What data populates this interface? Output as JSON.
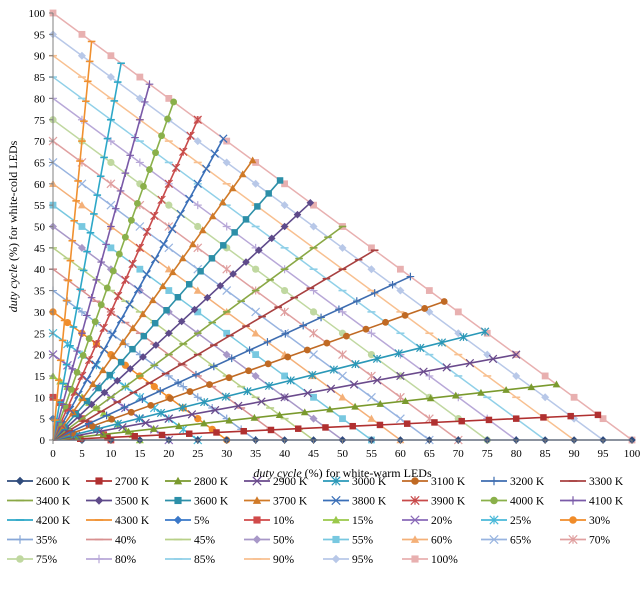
{
  "chart_data": {
    "type": "line",
    "title": "",
    "xlabel_italic": "duty cycle",
    "xlabel_rest": " (%) for white-warm LEDs",
    "ylabel_italic": "duty cycle",
    "ylabel_rest": " (%) for white-cold  LEDs",
    "xlim": [
      0,
      100
    ],
    "ylim": [
      0,
      100
    ],
    "xticks": [
      0,
      5,
      10,
      15,
      20,
      25,
      30,
      35,
      40,
      45,
      50,
      55,
      60,
      65,
      70,
      75,
      80,
      85,
      90,
      95,
      100
    ],
    "yticks": [
      0,
      5,
      10,
      15,
      20,
      25,
      30,
      35,
      40,
      45,
      50,
      55,
      60,
      65,
      70,
      75,
      80,
      85,
      90,
      95,
      100
    ],
    "grid": false,
    "legend_position": "bottom",
    "note": "CCT series are rays from origin: y = ratio * x, clipped to x + y <= 100. Duty series are lines x + y = total.",
    "cct_series": [
      {
        "name": "2600 K",
        "ratio": 0.0,
        "color": "#2F4B7C",
        "marker": "diamond"
      },
      {
        "name": "2700 K",
        "ratio": 0.0625,
        "color": "#B03030",
        "marker": "square"
      },
      {
        "name": "2800 K",
        "ratio": 0.15,
        "color": "#7A9A2E",
        "marker": "triangle"
      },
      {
        "name": "2900 K",
        "ratio": 0.25,
        "color": "#6A4A8C",
        "marker": "x"
      },
      {
        "name": "3000 K",
        "ratio": 0.34,
        "color": "#2A98B8",
        "marker": "star"
      },
      {
        "name": "3100 K",
        "ratio": 0.48,
        "color": "#C06A24",
        "marker": "circle"
      },
      {
        "name": "3200 K",
        "ratio": 0.62,
        "color": "#3E6DB0",
        "marker": "plus"
      },
      {
        "name": "3300 K",
        "ratio": 0.8,
        "color": "#A84040",
        "marker": "dash"
      },
      {
        "name": "3400 K",
        "ratio": 1.0,
        "color": "#8AA845",
        "marker": "dash"
      },
      {
        "name": "3500 K",
        "ratio": 1.25,
        "color": "#5E4A8A",
        "marker": "diamond"
      },
      {
        "name": "3600 K",
        "ratio": 1.55,
        "color": "#2C8FA8",
        "marker": "square"
      },
      {
        "name": "3700 K",
        "ratio": 1.9,
        "color": "#D07A28",
        "marker": "triangle"
      },
      {
        "name": "3800 K",
        "ratio": 2.4,
        "color": "#3A6FB8",
        "marker": "x"
      },
      {
        "name": "3900 K",
        "ratio": 3.0,
        "color": "#C84A4A",
        "marker": "star"
      },
      {
        "name": "4000 K",
        "ratio": 3.8,
        "color": "#8AB04A",
        "marker": "circle"
      },
      {
        "name": "4100 K",
        "ratio": 5.0,
        "color": "#7A5AA8",
        "marker": "plus"
      },
      {
        "name": "4200 K",
        "ratio": 7.5,
        "color": "#2EA8C8",
        "marker": "dash"
      },
      {
        "name": "4300 K",
        "ratio": 14.0,
        "color": "#F09030",
        "marker": "dash"
      }
    ],
    "duty_series": [
      {
        "name": "5%",
        "total": 5,
        "color": "#3A78C8",
        "marker": "diamond"
      },
      {
        "name": "10%",
        "total": 10,
        "color": "#D04A4A",
        "marker": "square"
      },
      {
        "name": "15%",
        "total": 15,
        "color": "#9AC84A",
        "marker": "triangle"
      },
      {
        "name": "20%",
        "total": 20,
        "color": "#8A6AB8",
        "marker": "x"
      },
      {
        "name": "25%",
        "total": 25,
        "color": "#48B8D8",
        "marker": "star"
      },
      {
        "name": "30%",
        "total": 30,
        "color": "#F08C2A",
        "marker": "circle"
      },
      {
        "name": "35%",
        "total": 35,
        "color": "#88A8D8",
        "marker": "plus"
      },
      {
        "name": "40%",
        "total": 40,
        "color": "#D89090",
        "marker": "dash"
      },
      {
        "name": "45%",
        "total": 45,
        "color": "#B8D088",
        "marker": "dash"
      },
      {
        "name": "50%",
        "total": 50,
        "color": "#A898C8",
        "marker": "diamond"
      },
      {
        "name": "55%",
        "total": 55,
        "color": "#78C8E0",
        "marker": "square"
      },
      {
        "name": "60%",
        "total": 60,
        "color": "#F4B078",
        "marker": "triangle"
      },
      {
        "name": "65%",
        "total": 65,
        "color": "#98B4E0",
        "marker": "x"
      },
      {
        "name": "70%",
        "total": 70,
        "color": "#E0A0A0",
        "marker": "star"
      },
      {
        "name": "75%",
        "total": 75,
        "color": "#C0D8A0",
        "marker": "circle"
      },
      {
        "name": "80%",
        "total": 80,
        "color": "#B8A8D8",
        "marker": "plus"
      },
      {
        "name": "85%",
        "total": 85,
        "color": "#90D0E8",
        "marker": "dash"
      },
      {
        "name": "90%",
        "total": 90,
        "color": "#F8C090",
        "marker": "dash"
      },
      {
        "name": "95%",
        "total": 95,
        "color": "#B8C8E8",
        "marker": "diamond"
      },
      {
        "name": "100%",
        "total": 100,
        "color": "#E8B0B0",
        "marker": "square"
      }
    ]
  }
}
